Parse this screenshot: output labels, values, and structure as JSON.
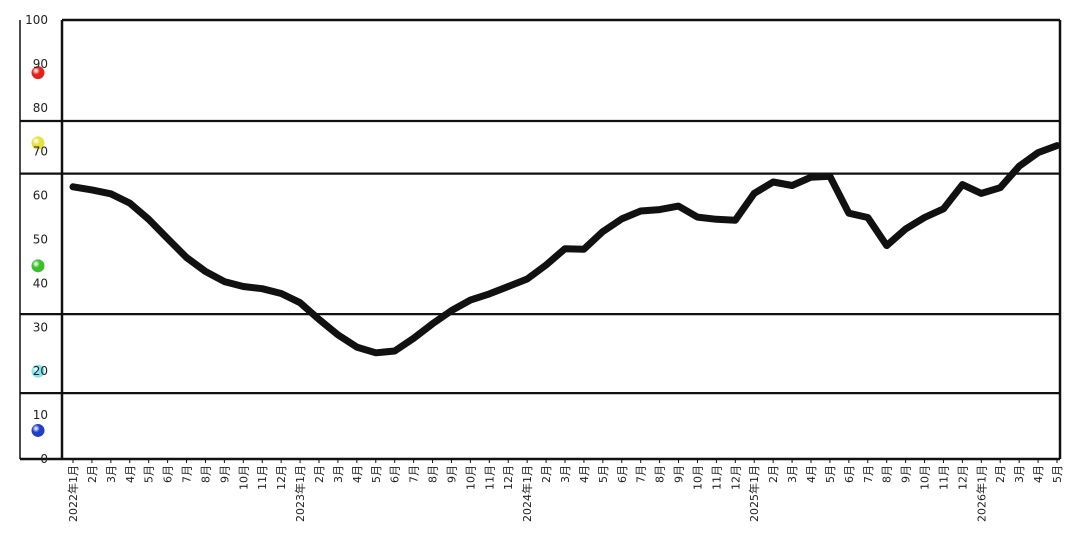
{
  "chart_data": {
    "type": "line",
    "title": "",
    "xlabel": "",
    "ylabel": "",
    "ylim": [
      0,
      100
    ],
    "y_ticks": [
      "0",
      "10",
      "20",
      "30",
      "40",
      "50",
      "60",
      "70",
      "80",
      "90",
      "100"
    ],
    "zone_boundaries": [
      15,
      33,
      65,
      77
    ],
    "grid": false,
    "legend": "none",
    "zone_markers": [
      {
        "name": "red-marker",
        "color": "#e0251e",
        "y": 88
      },
      {
        "name": "yellow-marker",
        "color": "#e8e040",
        "y": 72
      },
      {
        "name": "green-marker",
        "color": "#39c02a",
        "y": 44
      },
      {
        "name": "light-blue-marker",
        "color": "#7fe4ee",
        "y": 20
      },
      {
        "name": "blue-marker",
        "color": "#1f3fc8",
        "y": 6.5
      }
    ],
    "line_color": "#111111",
    "categories": [
      "2022年1月",
      "2月",
      "3月",
      "4月",
      "5月",
      "6月",
      "7月",
      "8月",
      "9月",
      "10月",
      "11月",
      "12月",
      "2023年1月",
      "2月",
      "3月",
      "4月",
      "5月",
      "6月",
      "7月",
      "8月",
      "9月",
      "10月",
      "11月",
      "12月",
      "2024年1月",
      "2月",
      "3月",
      "4月",
      "5月",
      "6月",
      "7月",
      "8月",
      "9月",
      "10月",
      "11月",
      "12月",
      "2025年1月",
      "2月",
      "3月",
      "4月",
      "5月",
      "6月",
      "7月",
      "8月",
      "9月",
      "10月",
      "11月",
      "12月",
      "2026年1月",
      "2月",
      "3月",
      "4月",
      "5月"
    ],
    "values": [
      62.0,
      61.3,
      60.4,
      58.3,
      54.6,
      50.2,
      45.9,
      42.7,
      40.4,
      39.3,
      38.8,
      37.7,
      35.6,
      31.8,
      28.3,
      25.5,
      24.2,
      24.6,
      27.5,
      30.8,
      33.8,
      36.2,
      37.6,
      39.3,
      41.0,
      44.2,
      47.9,
      47.8,
      51.8,
      54.7,
      56.5,
      56.8,
      57.6,
      55.1,
      54.6,
      54.4,
      60.5,
      63.1,
      62.3,
      64.2,
      64.4,
      56.0,
      55.0,
      48.6,
      52.4,
      55.0,
      57.0,
      62.5,
      60.5,
      61.8,
      66.7,
      69.8,
      71.4
    ]
  }
}
